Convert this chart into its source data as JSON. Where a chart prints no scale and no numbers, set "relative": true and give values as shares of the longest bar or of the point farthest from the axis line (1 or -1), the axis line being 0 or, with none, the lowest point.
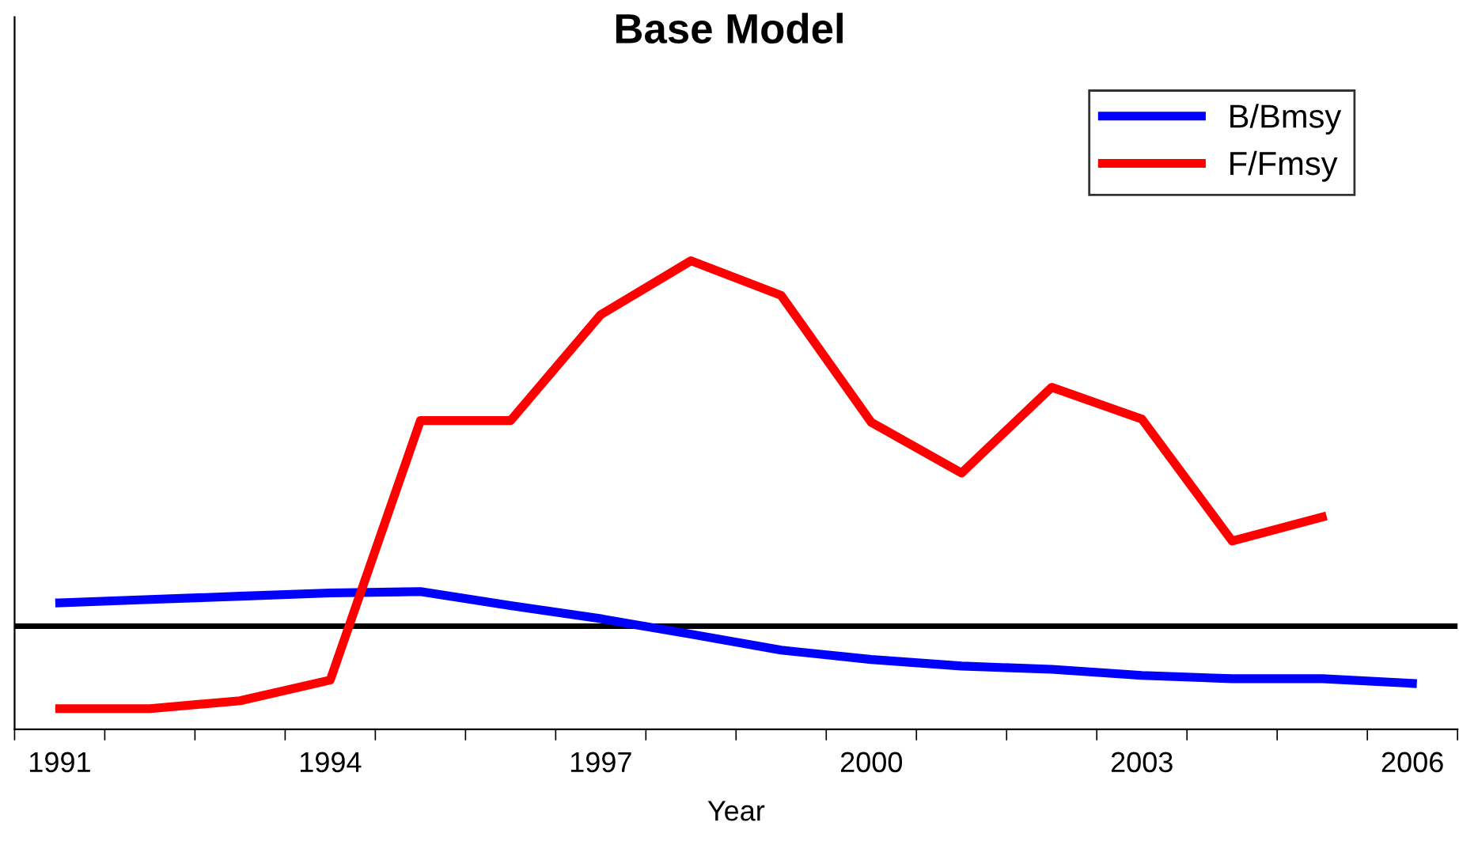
{
  "chart_data": {
    "type": "line",
    "title": "Base Model",
    "xlabel": "Year",
    "relative": true,
    "categories": [
      "1991",
      null,
      null,
      "1994",
      null,
      null,
      "1997",
      null,
      null,
      "2000",
      null,
      null,
      "2003",
      null,
      null,
      "2006"
    ],
    "series": [
      {
        "name": "B/Bmsy",
        "color": "#0000ff",
        "values": [
          0.27,
          0.277,
          0.284,
          0.291,
          0.294,
          0.264,
          0.236,
          0.203,
          0.169,
          0.149,
          0.135,
          0.128,
          0.115,
          0.108,
          0.108,
          0.098
        ]
      },
      {
        "name": "F/Fmsy",
        "color": "#ff0000",
        "values": [
          0.044,
          0.044,
          0.061,
          0.105,
          0.659,
          0.659,
          0.885,
          1.0,
          0.926,
          0.655,
          0.547,
          0.73,
          0.662,
          0.402,
          0.453,
          null
        ]
      }
    ],
    "ref_lines": [
      {
        "axis": "y",
        "value": 0.22,
        "color": "#000000"
      }
    ],
    "legend": "top right",
    "grid": false,
    "marker": "none",
    "line_style": "solid"
  }
}
